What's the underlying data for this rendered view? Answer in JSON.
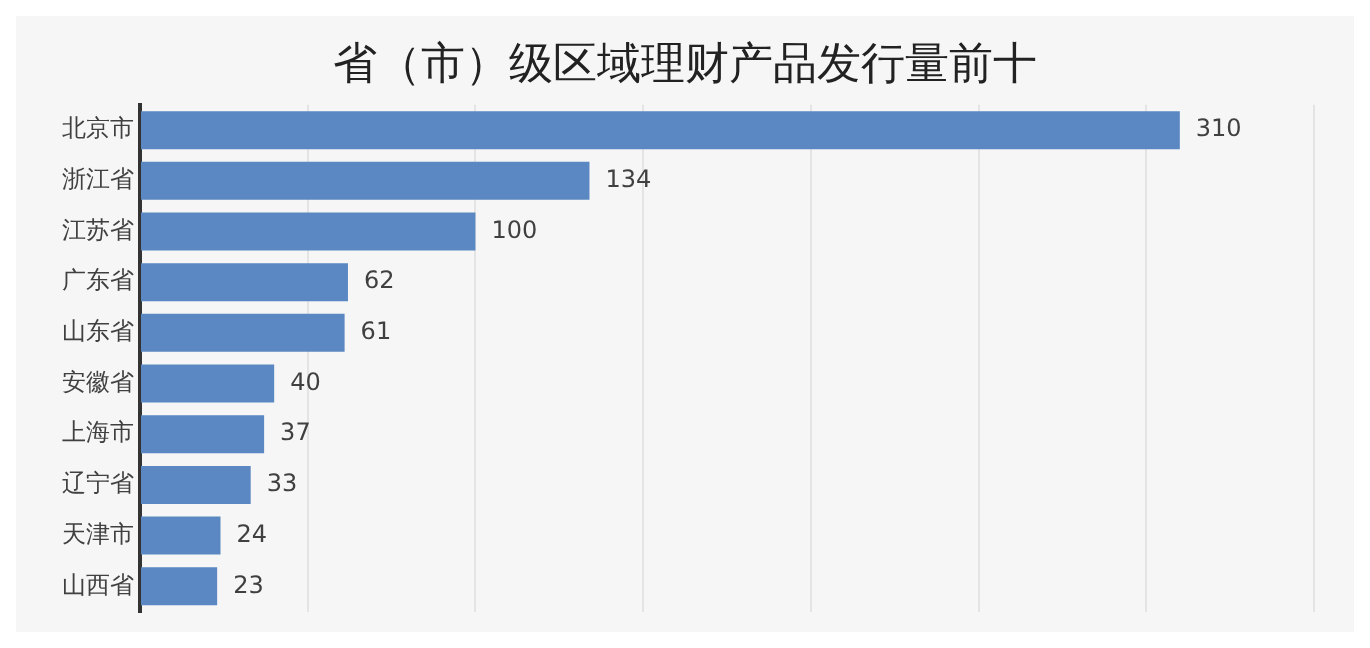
{
  "chart_data": {
    "type": "bar",
    "orientation": "horizontal",
    "title": "省（市）级区域理财产品发行量前十",
    "categories": [
      "北京市",
      "浙江省",
      "江苏省",
      "广东省",
      "山东省",
      "安徽省",
      "上海市",
      "辽宁省",
      "天津市",
      "山西省"
    ],
    "values": [
      310,
      134,
      100,
      62,
      61,
      40,
      37,
      33,
      24,
      23
    ],
    "color": "#5b87c2",
    "grid": "x",
    "tick_labels": "y",
    "data_labels": true,
    "legend": false
  }
}
